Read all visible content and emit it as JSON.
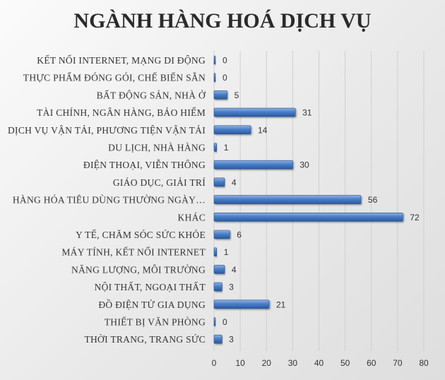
{
  "chart_data": {
    "type": "bar",
    "orientation": "horizontal",
    "title": "NGÀNH HÀNG HOÁ DỊCH VỤ",
    "categories": [
      "KẾT NỐI INTERNET, MẠNG DI ĐỘNG",
      "THỰC PHẨM ĐÓNG GÓI, CHẾ BIẾN SẴN",
      "BẤT ĐỘNG SẢN, NHÀ Ở",
      "TÀI CHÍNH, NGÂN HÀNG, BẢO HIỂM",
      "DỊCH VỤ VẬN TẢI, PHƯƠNG TIỆN VẬN TẢI",
      "DU LỊCH, NHÀ HÀNG",
      "ĐIỆN THOẠI, VIỄN THÔNG",
      "GIÁO DỤC, GIẢI TRÍ",
      "HÀNG HÓA TIÊU DÙNG THƯỜNG NGÀY…",
      "KHÁC",
      "Y TẾ, CHĂM SÓC SỨC KHỎE",
      "MÁY TÍNH, KẾT NỐI INTERNET",
      "NĂNG LƯỢNG, MÔI TRƯỜNG",
      "NỘI THẤT, NGOẠI THẤT",
      "ĐỒ ĐIỆN TỬ GIA DỤNG",
      "THIẾT BỊ VĂN PHÒNG",
      "THỜI TRANG, TRANG SỨC"
    ],
    "values": [
      0,
      0,
      5,
      31,
      14,
      1,
      30,
      4,
      56,
      72,
      6,
      1,
      4,
      3,
      21,
      0,
      3
    ],
    "xlim": [
      0,
      80
    ],
    "xticks": [
      0,
      10,
      20,
      30,
      40,
      50,
      60,
      70,
      80
    ],
    "data_labels": true,
    "grid": "vertical gridlines",
    "legend": "none",
    "colors": {
      "bar_light": "#8fb3e4",
      "bar_mid": "#4a7ec8",
      "bar_dark": "#2a5a9f",
      "gridline": "#cfcfcf"
    }
  }
}
